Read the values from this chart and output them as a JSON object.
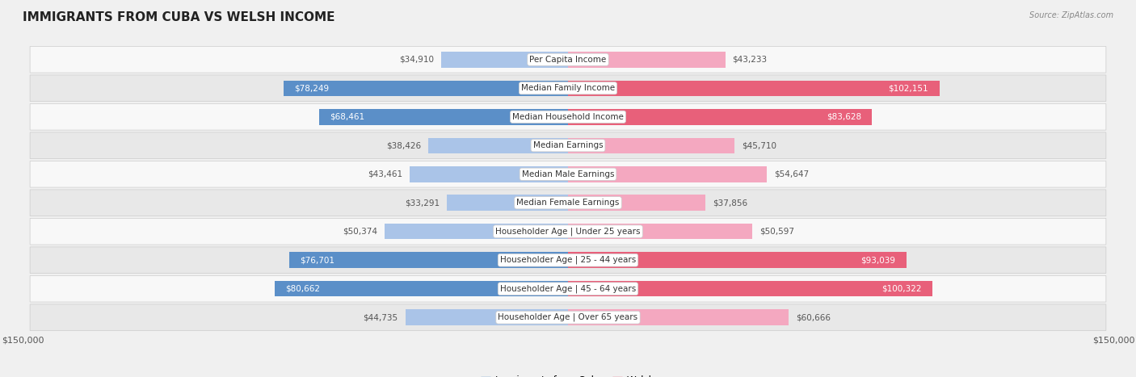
{
  "title": "IMMIGRANTS FROM CUBA VS WELSH INCOME",
  "source": "Source: ZipAtlas.com",
  "categories": [
    "Per Capita Income",
    "Median Family Income",
    "Median Household Income",
    "Median Earnings",
    "Median Male Earnings",
    "Median Female Earnings",
    "Householder Age | Under 25 years",
    "Householder Age | 25 - 44 years",
    "Householder Age | 45 - 64 years",
    "Householder Age | Over 65 years"
  ],
  "cuba_values": [
    34910,
    78249,
    68461,
    38426,
    43461,
    33291,
    50374,
    76701,
    80662,
    44735
  ],
  "welsh_values": [
    43233,
    102151,
    83628,
    45710,
    54647,
    37856,
    50597,
    93039,
    100322,
    60666
  ],
  "cuba_color_light": "#aac4e8",
  "cuba_color_dark": "#5b8fc8",
  "welsh_color_light": "#f4a8c0",
  "welsh_color_dark": "#e8607a",
  "axis_max": 150000,
  "bg_color": "#f0f0f0",
  "row_bg_light": "#f8f8f8",
  "row_bg_dark": "#e8e8e8",
  "title_fontsize": 11,
  "value_fontsize": 7.5,
  "cat_fontsize": 7.5,
  "tick_fontsize": 8,
  "legend_fontsize": 8.5,
  "cuba_threshold": 60000,
  "welsh_threshold": 75000
}
